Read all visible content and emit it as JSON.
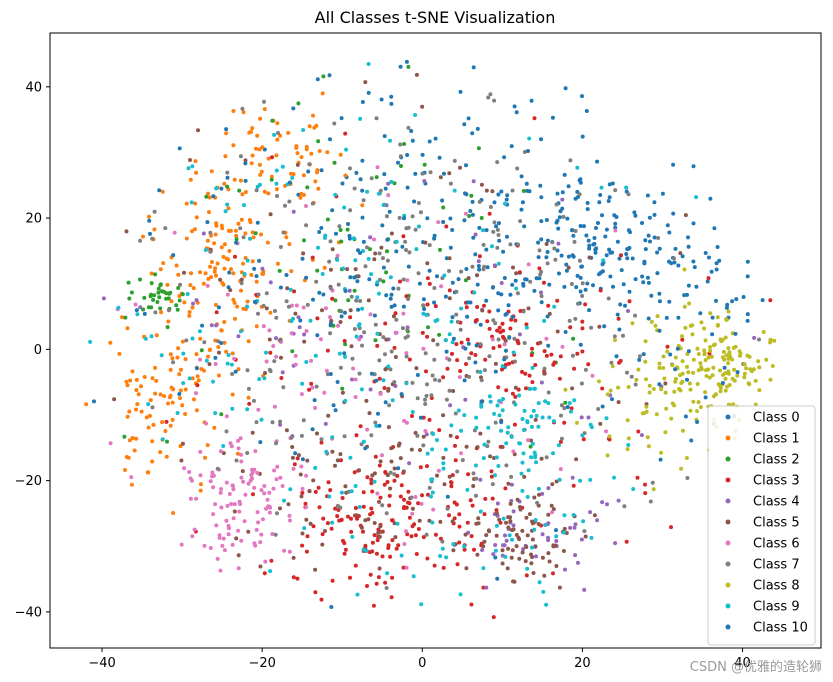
{
  "chart_data": {
    "type": "scatter",
    "title": "All Classes t-SNE Visualization",
    "xlabel": "",
    "ylabel": "",
    "xlim": [
      -46.5,
      49.8
    ],
    "ylim": [
      -45.5,
      48.2
    ],
    "x_ticks": [
      -40,
      -20,
      0,
      20,
      40
    ],
    "y_ticks": [
      -40,
      -20,
      0,
      20,
      40
    ],
    "grid": false,
    "legend_position": "lower-right",
    "series": [
      {
        "name": "Class 0",
        "color": "#1f77b4",
        "clusters": [
          {
            "cx": 22,
            "cy": 16,
            "sx": 6,
            "sy": 5,
            "n": 110
          },
          {
            "cx": 5,
            "cy": 20,
            "sx": 12,
            "sy": 10,
            "n": 150
          },
          {
            "cx": 33,
            "cy": 12,
            "sx": 5,
            "sy": 6,
            "n": 40
          }
        ]
      },
      {
        "name": "Class 1",
        "color": "#ff7f0e",
        "clusters": [
          {
            "cx": -25,
            "cy": 12,
            "sx": 5,
            "sy": 8,
            "n": 150
          },
          {
            "cx": -17,
            "cy": 30,
            "sx": 4,
            "sy": 4,
            "n": 60
          },
          {
            "cx": -33,
            "cy": -8,
            "sx": 4,
            "sy": 7,
            "n": 90
          }
        ]
      },
      {
        "name": "Class 2",
        "color": "#2ca02c",
        "clusters": [
          {
            "cx": -33,
            "cy": 8,
            "sx": 1.8,
            "sy": 1.6,
            "n": 35
          },
          {
            "cx": -5,
            "cy": 15,
            "sx": 15,
            "sy": 12,
            "n": 65
          }
        ]
      },
      {
        "name": "Class 3",
        "color": "#d62728",
        "clusters": [
          {
            "cx": -5,
            "cy": -27,
            "sx": 6,
            "sy": 6,
            "n": 150
          },
          {
            "cx": 10,
            "cy": 2,
            "sx": 7,
            "sy": 6,
            "n": 90
          },
          {
            "cx": 5,
            "cy": -10,
            "sx": 18,
            "sy": 16,
            "n": 110
          }
        ]
      },
      {
        "name": "Class 4",
        "color": "#9467bd",
        "clusters": [
          {
            "cx": 14,
            "cy": -28,
            "sx": 5,
            "sy": 4,
            "n": 45
          },
          {
            "cx": 0,
            "cy": 0,
            "sx": 18,
            "sy": 16,
            "n": 60
          }
        ]
      },
      {
        "name": "Class 5",
        "color": "#8c564b",
        "clusters": [
          {
            "cx": 13,
            "cy": -28,
            "sx": 4,
            "sy": 4,
            "n": 80
          },
          {
            "cx": -8,
            "cy": -20,
            "sx": 9,
            "sy": 9,
            "n": 90
          },
          {
            "cx": 0,
            "cy": 2,
            "sx": 18,
            "sy": 16,
            "n": 110
          }
        ]
      },
      {
        "name": "Class 6",
        "color": "#e377c2",
        "clusters": [
          {
            "cx": -22,
            "cy": -23,
            "sx": 4,
            "sy": 5,
            "n": 110
          },
          {
            "cx": -10,
            "cy": -5,
            "sx": 14,
            "sy": 14,
            "n": 90
          }
        ]
      },
      {
        "name": "Class 7",
        "color": "#7f7f7f",
        "clusters": [
          {
            "cx": 0,
            "cy": 5,
            "sx": 18,
            "sy": 17,
            "n": 300
          }
        ]
      },
      {
        "name": "Class 8",
        "color": "#bcbd22",
        "clusters": [
          {
            "cx": 37,
            "cy": -3,
            "sx": 4,
            "sy": 4,
            "n": 150
          },
          {
            "cx": 30,
            "cy": -8,
            "sx": 4,
            "sy": 6,
            "n": 50
          }
        ]
      },
      {
        "name": "Class 9",
        "color": "#17becf",
        "clusters": [
          {
            "cx": 12,
            "cy": -12,
            "sx": 4,
            "sy": 4,
            "n": 60
          },
          {
            "cx": -10,
            "cy": 5,
            "sx": 16,
            "sy": 16,
            "n": 150
          },
          {
            "cx": 5,
            "cy": -25,
            "sx": 12,
            "sy": 8,
            "n": 70
          }
        ]
      },
      {
        "name": "Class 10",
        "color": "#1f77b4",
        "clusters": [
          {
            "cx": 0,
            "cy": 10,
            "sx": 18,
            "sy": 16,
            "n": 150
          },
          {
            "cx": 30,
            "cy": 0,
            "sx": 6,
            "sy": 6,
            "n": 30
          }
        ]
      }
    ]
  },
  "watermark": "CSDN @优雅的造轮狮"
}
